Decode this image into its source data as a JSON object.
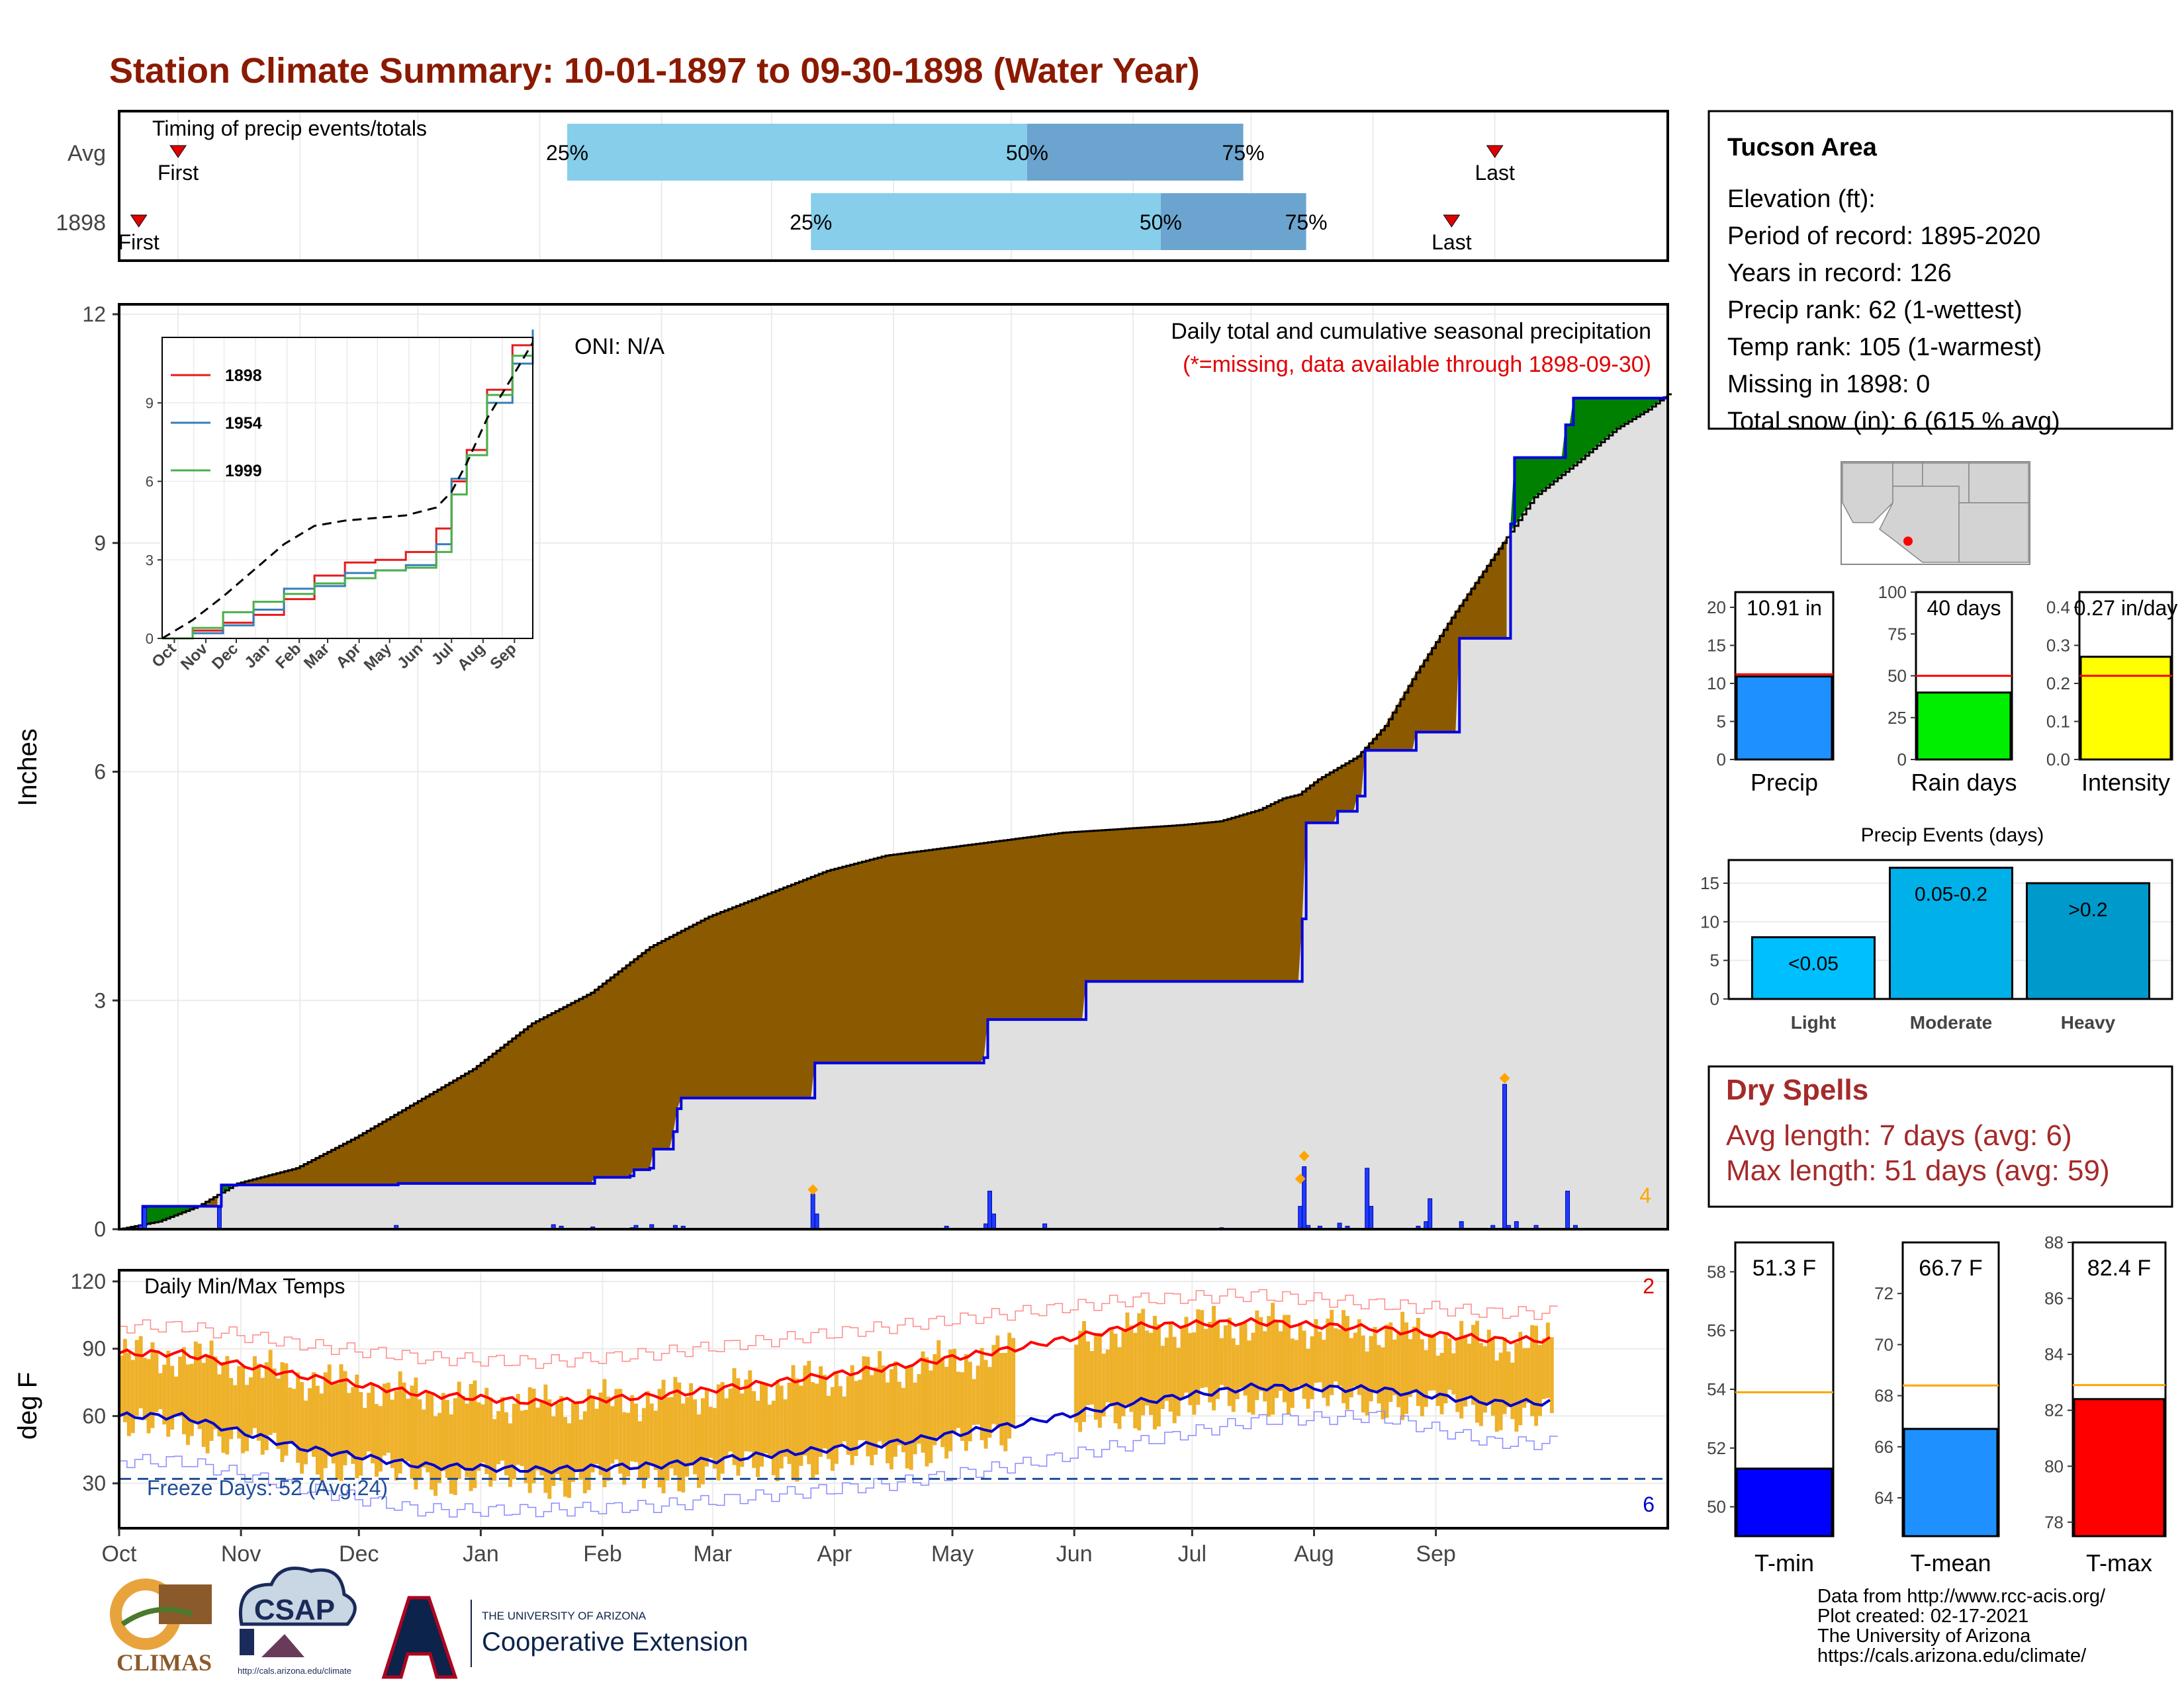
{
  "title": "Station Climate Summary: 10-01-1897 to 09-30-1898 (Water Year)",
  "timing": {
    "label": "Timing of precip events/totals",
    "rows": [
      {
        "name": "Avg",
        "first_day": 15,
        "p25_day": 114,
        "p50_day": 231,
        "p75_day": 286,
        "last_day": 350,
        "first_label": "First",
        "last_label": "Last",
        "p25_label": "25%",
        "p50_label": "50%",
        "p75_label": "75%"
      },
      {
        "name": "1898",
        "first_day": 5,
        "p25_day": 176,
        "p50_day": 265,
        "p75_day": 302,
        "last_day": 339,
        "first_label": "First",
        "last_label": "Last",
        "p25_label": "25%",
        "p50_label": "50%",
        "p75_label": "75%"
      }
    ]
  },
  "precip_panel": {
    "ylabel": "Inches",
    "yticks": [
      "0",
      "3",
      "6",
      "9",
      "12"
    ],
    "ymax": 12,
    "oni": "ONI: N/A",
    "caption": "Daily total and cumulative seasonal precipitation",
    "missing_note": "(*=missing, data available through 1898-09-30)",
    "extreme_count": "4"
  },
  "inset": {
    "yticks": [
      "0",
      "3",
      "6",
      "9"
    ],
    "xticks": [
      "Oct",
      "Nov",
      "Dec",
      "Jan",
      "Feb",
      "Mar",
      "Apr",
      "May",
      "Jun",
      "Jul",
      "Aug",
      "Sep"
    ],
    "legend": [
      {
        "year": "1898",
        "color": "#e41a1c"
      },
      {
        "year": "1954",
        "color": "#377eb8"
      },
      {
        "year": "1999",
        "color": "#4daf4a"
      }
    ]
  },
  "temp_panel": {
    "ylabel": "deg F",
    "label": "Daily Min/Max Temps",
    "yticks": [
      "30",
      "60",
      "90",
      "120"
    ],
    "freeze_label": "Freeze Days: 52 (Avg:24)",
    "hot_count": "2",
    "cold_count": "6"
  },
  "months": [
    "Oct",
    "Nov",
    "Dec",
    "Jan",
    "Feb",
    "Mar",
    "Apr",
    "May",
    "Jun",
    "Jul",
    "Aug",
    "Sep"
  ],
  "station": {
    "name": "Tucson Area",
    "lines": [
      "Elevation (ft):",
      "Period of record: 1895-2020",
      "Years in record: 126",
      "Precip rank: 62 (1-wettest)",
      "Temp rank: 105 (1-warmest)",
      "Missing in 1898: 0",
      "Total snow (in): 6 (615 % avg)"
    ]
  },
  "summary_bars": [
    {
      "name": "Precip",
      "label": "10.91 in",
      "value": 10.91,
      "avg": 11.2,
      "ymax": 22,
      "yticks": [
        "0",
        "5",
        "10",
        "15",
        "20"
      ],
      "color": "#1e90ff"
    },
    {
      "name": "Rain days",
      "label": "40 days",
      "value": 40,
      "avg": 50,
      "ymax": 100,
      "yticks": [
        "0",
        "25",
        "50",
        "75",
        "100"
      ],
      "color": "#00ee00"
    },
    {
      "name": "Intensity",
      "label": "0.27 in/day",
      "value": 0.27,
      "avg": 0.22,
      "ymax": 0.44,
      "yticks": [
        "0.0",
        "0.1",
        "0.2",
        "0.3",
        "0.4"
      ],
      "color": "#ffff00"
    }
  ],
  "events": {
    "title": "Precip Events (days)",
    "yticks": [
      "0",
      "5",
      "10",
      "15"
    ],
    "bars": [
      {
        "name": "Light",
        "range": "<0.05",
        "value": 8,
        "color": "#00bfff"
      },
      {
        "name": "Moderate",
        "range": "0.05-0.2",
        "value": 17,
        "color": "#00b0e8"
      },
      {
        "name": "Heavy",
        "range": ">0.2",
        "value": 15,
        "color": "#0099cc"
      }
    ]
  },
  "dry_spells": {
    "title": "Dry Spells",
    "avg_line": "Avg length: 7 days (avg: 6)",
    "max_line": "Max length: 51 days (avg: 59)"
  },
  "temp_bars": [
    {
      "name": "T-min",
      "label": "51.3 F",
      "value": 51.3,
      "avg": 53.9,
      "ymin": 49,
      "ymax": 59,
      "yticks": [
        "50",
        "52",
        "54",
        "56",
        "58"
      ],
      "color": "#0000ff"
    },
    {
      "name": "T-mean",
      "label": "66.7 F",
      "value": 66.7,
      "avg": 68.4,
      "ymin": 62.5,
      "ymax": 74,
      "yticks": [
        "64",
        "66",
        "68",
        "70",
        "72"
      ],
      "color": "#1e90ff"
    },
    {
      "name": "T-max",
      "label": "82.4 F",
      "value": 82.4,
      "avg": 82.9,
      "ymin": 77.5,
      "ymax": 88,
      "yticks": [
        "78",
        "80",
        "82",
        "84",
        "86",
        "88"
      ],
      "color": "#ff0000"
    }
  ],
  "credits": [
    "Data from http://www.rcc-acis.org/",
    "Plot created: 02-17-2021",
    "The University of Arizona",
    "https://cals.arizona.edu/climate/"
  ],
  "logos": {
    "climas": "CLIMAS",
    "csap": "CSAP",
    "csap_url": "http://cals.arizona.edu/climate",
    "ua_small": "THE UNIVERSITY OF ARIZONA",
    "ua_big": "Cooperative Extension"
  },
  "chart_data": [
    {
      "type": "area",
      "title": "Daily total and cumulative seasonal precipitation",
      "ylabel": "Inches",
      "ylim": [
        0,
        12
      ],
      "x_domain": "days Oct 1 1897 - Sep 30 1898",
      "observed_cumulative": [
        [
          0,
          0
        ],
        [
          5,
          0.02
        ],
        [
          6,
          0.3
        ],
        [
          25,
          0.3
        ],
        [
          26,
          0.58
        ],
        [
          70,
          0.58
        ],
        [
          71,
          0.6
        ],
        [
          120,
          0.6
        ],
        [
          121,
          0.68
        ],
        [
          130,
          0.7
        ],
        [
          131,
          0.78
        ],
        [
          135,
          0.8
        ],
        [
          136,
          1.05
        ],
        [
          141,
          1.28
        ],
        [
          142,
          1.58
        ],
        [
          143,
          1.72
        ],
        [
          176,
          1.72
        ],
        [
          177,
          2.18
        ],
        [
          219,
          2.18
        ],
        [
          220,
          2.25
        ],
        [
          221,
          2.75
        ],
        [
          245,
          2.75
        ],
        [
          246,
          3.25
        ],
        [
          300,
          3.25
        ],
        [
          301,
          4.07
        ],
        [
          302,
          5.33
        ],
        [
          310,
          5.48
        ],
        [
          315,
          5.68
        ],
        [
          317,
          6.28
        ],
        [
          325,
          6.28
        ],
        [
          330,
          6.52
        ],
        [
          340,
          6.52
        ],
        [
          341,
          7.75
        ],
        [
          352,
          7.75
        ],
        [
          354,
          9.25
        ],
        [
          355,
          10.12
        ],
        [
          365,
          10.12
        ],
        [
          368,
          10.55
        ],
        [
          370,
          10.9
        ],
        [
          394,
          10.91
        ]
      ],
      "average_cumulative": [
        [
          0,
          0
        ],
        [
          10,
          0.1
        ],
        [
          20,
          0.3
        ],
        [
          30,
          0.6
        ],
        [
          45,
          0.8
        ],
        [
          60,
          1.2
        ],
        [
          90,
          2.1
        ],
        [
          105,
          2.7
        ],
        [
          120,
          3.1
        ],
        [
          135,
          3.7
        ],
        [
          150,
          4.1
        ],
        [
          165,
          4.4
        ],
        [
          180,
          4.7
        ],
        [
          195,
          4.9
        ],
        [
          210,
          5.0
        ],
        [
          225,
          5.1
        ],
        [
          240,
          5.2
        ],
        [
          255,
          5.25
        ],
        [
          270,
          5.3
        ],
        [
          280,
          5.35
        ],
        [
          290,
          5.5
        ],
        [
          296,
          5.65
        ],
        [
          300,
          5.7
        ],
        [
          305,
          5.9
        ],
        [
          315,
          6.2
        ],
        [
          322,
          6.6
        ],
        [
          330,
          7.3
        ],
        [
          340,
          8.1
        ],
        [
          352,
          9.0
        ],
        [
          360,
          9.6
        ],
        [
          372,
          10.1
        ],
        [
          381,
          10.5
        ],
        [
          389,
          10.75
        ],
        [
          394,
          10.95
        ]
      ],
      "daily_precip": [
        [
          5,
          0.05
        ],
        [
          6,
          0.28
        ],
        [
          25,
          0.28
        ],
        [
          70,
          0.05
        ],
        [
          110,
          0.06
        ],
        [
          112,
          0.04
        ],
        [
          120,
          0.03
        ],
        [
          130,
          0.02
        ],
        [
          131,
          0.05
        ],
        [
          135,
          0.06
        ],
        [
          141,
          0.05
        ],
        [
          143,
          0.04
        ],
        [
          176,
          0.46
        ],
        [
          177,
          0.2
        ],
        [
          210,
          0.04
        ],
        [
          220,
          0.07
        ],
        [
          221,
          0.5
        ],
        [
          222,
          0.2
        ],
        [
          235,
          0.07
        ],
        [
          280,
          0.02
        ],
        [
          300,
          0.3
        ],
        [
          301,
          0.82
        ],
        [
          302,
          0.05
        ],
        [
          305,
          0.04
        ],
        [
          310,
          0.08
        ],
        [
          312,
          0.04
        ],
        [
          317,
          0.8
        ],
        [
          318,
          0.3
        ],
        [
          330,
          0.04
        ],
        [
          332,
          0.1
        ],
        [
          333,
          0.4
        ],
        [
          341,
          0.1
        ],
        [
          349,
          0.05
        ],
        [
          352,
          1.9
        ],
        [
          353,
          0.05
        ],
        [
          355,
          0.1
        ],
        [
          360,
          0.05
        ],
        [
          368,
          0.5
        ],
        [
          370,
          0.05
        ]
      ],
      "flagged_days": [
        [
          176,
          0.52
        ],
        [
          300,
          0.66
        ],
        [
          301,
          0.96
        ],
        [
          352,
          1.98
        ]
      ]
    },
    {
      "type": "line",
      "title": "Cumulative precipitation comparison",
      "ylim": [
        0,
        11.5
      ],
      "series": [
        {
          "name": "1898",
          "values": [
            [
              0,
              0
            ],
            [
              30,
              0.3
            ],
            [
              60,
              0.6
            ],
            [
              90,
              0.9
            ],
            [
              120,
              1.5
            ],
            [
              150,
              2.4
            ],
            [
              180,
              2.9
            ],
            [
              210,
              3.0
            ],
            [
              240,
              3.3
            ],
            [
              270,
              4.2
            ],
            [
              285,
              6.0
            ],
            [
              300,
              7.2
            ],
            [
              320,
              9.5
            ],
            [
              345,
              11.2
            ],
            [
              365,
              11.4
            ]
          ]
        },
        {
          "name": "1954",
          "values": [
            [
              0,
              0
            ],
            [
              30,
              0.2
            ],
            [
              60,
              0.5
            ],
            [
              90,
              1.1
            ],
            [
              120,
              1.9
            ],
            [
              150,
              2.0
            ],
            [
              180,
              2.5
            ],
            [
              210,
              2.6
            ],
            [
              240,
              2.8
            ],
            [
              270,
              3.6
            ],
            [
              285,
              6.1
            ],
            [
              300,
              7.0
            ],
            [
              320,
              9.0
            ],
            [
              345,
              10.5
            ],
            [
              365,
              11.8
            ]
          ]
        },
        {
          "name": "1999",
          "values": [
            [
              0,
              0
            ],
            [
              30,
              0.4
            ],
            [
              60,
              1.0
            ],
            [
              90,
              1.4
            ],
            [
              120,
              1.7
            ],
            [
              150,
              2.1
            ],
            [
              180,
              2.3
            ],
            [
              210,
              2.6
            ],
            [
              240,
              2.7
            ],
            [
              270,
              3.3
            ],
            [
              285,
              5.5
            ],
            [
              300,
              7.0
            ],
            [
              320,
              9.3
            ],
            [
              345,
              10.8
            ],
            [
              365,
              11.2
            ]
          ]
        },
        {
          "name": "average",
          "values": [
            [
              0,
              0
            ],
            [
              30,
              0.7
            ],
            [
              60,
              1.6
            ],
            [
              90,
              2.6
            ],
            [
              120,
              3.6
            ],
            [
              150,
              4.3
            ],
            [
              180,
              4.5
            ],
            [
              210,
              4.6
            ],
            [
              240,
              4.7
            ],
            [
              270,
              5.0
            ],
            [
              285,
              5.6
            ],
            [
              300,
              6.7
            ],
            [
              320,
              8.4
            ],
            [
              345,
              10.0
            ],
            [
              365,
              11.3
            ]
          ]
        }
      ]
    },
    {
      "type": "bar",
      "title": "Daily Min/Max Temps",
      "ylabel": "deg F",
      "ylim": [
        10,
        125
      ],
      "normal_max_by_month": [
        88,
        78,
        70,
        66,
        69,
        75,
        82,
        90,
        100,
        102,
        99,
        94
      ],
      "normal_min_by_month": [
        60,
        46,
        38,
        36,
        38,
        43,
        48,
        56,
        66,
        73,
        72,
        66
      ],
      "record_max_by_month": [
        100,
        92,
        86,
        84,
        88,
        94,
        100,
        106,
        112,
        114,
        110,
        106
      ],
      "record_min_by_month": [
        40,
        28,
        18,
        18,
        20,
        25,
        30,
        38,
        48,
        58,
        60,
        48
      ],
      "freeze_threshold": 32,
      "freeze_days": 52,
      "freeze_days_avg": 24
    }
  ]
}
